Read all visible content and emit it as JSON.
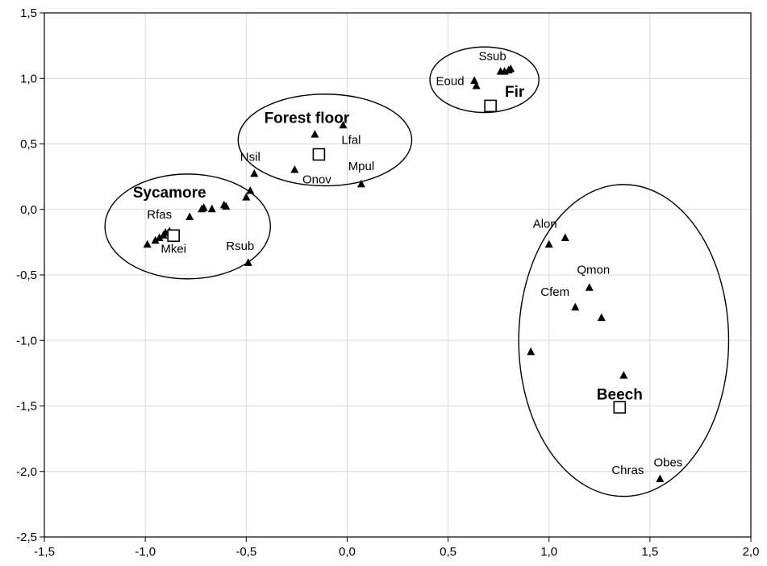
{
  "chart_data": {
    "type": "scatter",
    "title": "",
    "xlabel": "",
    "ylabel": "",
    "xlim": [
      -1.5,
      2.0
    ],
    "ylim": [
      -2.5,
      1.5
    ],
    "grid": true,
    "x_ticks": [
      "-1,5",
      "-1,0",
      "-0,5",
      "0,0",
      "0,5",
      "1,0",
      "1,5",
      "2,0"
    ],
    "y_ticks": [
      "1,5",
      "1,0",
      "0,5",
      "0,0",
      "-0,5",
      "-1,0",
      "-1,5",
      "-2,0",
      "-2,5"
    ],
    "points": [
      {
        "x": -0.99,
        "y": -0.27
      },
      {
        "x": -0.95,
        "y": -0.24
      },
      {
        "x": -0.93,
        "y": -0.22
      },
      {
        "x": -0.91,
        "y": -0.2
      },
      {
        "x": -0.9,
        "y": -0.18
      },
      {
        "x": -0.88,
        "y": -0.17
      },
      {
        "x": -0.87,
        "y": -0.19
      },
      {
        "x": -0.78,
        "y": -0.06
      },
      {
        "x": -0.72,
        "y": 0.0
      },
      {
        "x": -0.71,
        "y": 0.01
      },
      {
        "x": -0.67,
        "y": 0.0
      },
      {
        "x": -0.61,
        "y": 0.03
      },
      {
        "x": -0.6,
        "y": 0.02
      },
      {
        "x": -0.5,
        "y": 0.09
      },
      {
        "x": -0.48,
        "y": 0.14
      },
      {
        "x": -0.46,
        "y": 0.27
      },
      {
        "x": -0.49,
        "y": -0.41
      },
      {
        "x": -0.26,
        "y": 0.3
      },
      {
        "x": -0.16,
        "y": 0.57
      },
      {
        "x": -0.02,
        "y": 0.64
      },
      {
        "x": 0.07,
        "y": 0.19
      },
      {
        "x": 0.63,
        "y": 0.98
      },
      {
        "x": 0.64,
        "y": 0.94
      },
      {
        "x": 0.76,
        "y": 1.05
      },
      {
        "x": 0.78,
        "y": 1.05
      },
      {
        "x": 0.8,
        "y": 1.06
      },
      {
        "x": 0.81,
        "y": 1.07
      },
      {
        "x": 1.0,
        "y": -0.27
      },
      {
        "x": 1.08,
        "y": -0.22
      },
      {
        "x": 1.2,
        "y": -0.6
      },
      {
        "x": 1.13,
        "y": -0.75
      },
      {
        "x": 1.26,
        "y": -0.83
      },
      {
        "x": 0.91,
        "y": -1.09
      },
      {
        "x": 1.37,
        "y": -1.27
      },
      {
        "x": 1.55,
        "y": -2.06
      }
    ],
    "point_labels": [
      {
        "text": "Rfas",
        "x": -0.93,
        "y": -0.07
      },
      {
        "text": "Mkei",
        "x": -0.86,
        "y": -0.33
      },
      {
        "text": "Nsil",
        "x": -0.48,
        "y": 0.37
      },
      {
        "text": "Rsub",
        "x": -0.53,
        "y": -0.31
      },
      {
        "text": "Onov",
        "x": -0.15,
        "y": 0.2
      },
      {
        "text": "Lfal",
        "x": 0.02,
        "y": 0.5
      },
      {
        "text": "Mpul",
        "x": 0.07,
        "y": 0.3
      },
      {
        "text": "Ssub",
        "x": 0.72,
        "y": 1.14
      },
      {
        "text": "Eoud",
        "x": 0.51,
        "y": 0.95
      },
      {
        "text": "Alon",
        "x": 0.98,
        "y": -0.14
      },
      {
        "text": "Qmon",
        "x": 1.22,
        "y": -0.49
      },
      {
        "text": "Cfem",
        "x": 1.03,
        "y": -0.66
      },
      {
        "text": "Obes",
        "x": 1.59,
        "y": -1.96
      },
      {
        "text": "Chras",
        "x": 1.39,
        "y": -2.02
      }
    ],
    "groups": [
      {
        "name": "Sycamore",
        "centroid": {
          "x": -0.86,
          "y": -0.2
        },
        "label": {
          "x": -0.88,
          "y": 0.09
        },
        "ellipse": {
          "cx": -0.79,
          "cy": -0.13,
          "rx": 0.41,
          "ry": 0.4
        }
      },
      {
        "name": "Forest floor",
        "centroid": {
          "x": -0.14,
          "y": 0.42
        },
        "label": {
          "x": -0.2,
          "y": 0.66
        },
        "ellipse": {
          "cx": -0.11,
          "cy": 0.53,
          "rx": 0.43,
          "ry": 0.35
        }
      },
      {
        "name": "Fir",
        "centroid": {
          "x": 0.71,
          "y": 0.79
        },
        "label": {
          "x": 0.83,
          "y": 0.86
        },
        "ellipse": {
          "cx": 0.68,
          "cy": 0.99,
          "rx": 0.27,
          "ry": 0.25
        }
      },
      {
        "name": "Beech",
        "centroid": {
          "x": 1.35,
          "y": -1.51
        },
        "label": {
          "x": 1.35,
          "y": -1.45
        },
        "ellipse": {
          "cx": 1.37,
          "cy": -1.0,
          "rx": 0.52,
          "ry": 1.19
        }
      }
    ]
  }
}
